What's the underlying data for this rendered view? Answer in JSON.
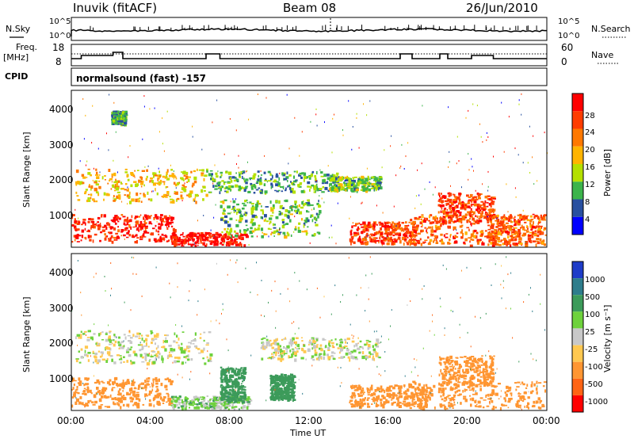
{
  "header": {
    "station": "Inuvik (fitACF)",
    "beam": "Beam 08",
    "date": "26/Jun/2010"
  },
  "panel_labels": {
    "nsky": "N.Sky",
    "nsearch": "N.Search",
    "freq": "Freq.",
    "freq_unit": "[MHz]",
    "nave": "Nave",
    "cpid": "CPID",
    "cpid_value": "normalsound (fast) -157"
  },
  "axis": {
    "xlabel": "Time UT",
    "xticks": [
      "00:00",
      "04:00",
      "08:00",
      "12:00",
      "16:00",
      "20:00",
      "00:00"
    ],
    "ylabel_power": "Slant Range [km]",
    "ylabel_velocity": "Slant Range [km]",
    "yticks": [
      "1000",
      "2000",
      "3000",
      "4000"
    ],
    "noise_left_ticks": [
      "10^5",
      "10^0"
    ],
    "noise_right_ticks": [
      "10^5",
      "10^0"
    ],
    "freq_ticks": [
      "18",
      "8"
    ],
    "nave_ticks": [
      "60",
      "0"
    ]
  },
  "colorbars": {
    "power": {
      "label": "Power [dB]",
      "ticks": [
        "28",
        "24",
        "20",
        "16",
        "12",
        "8",
        "4"
      ],
      "colors": [
        "#ff0000",
        "#ff3c00",
        "#ff7800",
        "#ffb400",
        "#b4e000",
        "#3cb44b",
        "#2850a0",
        "#0000ff"
      ]
    },
    "velocity": {
      "label": "Velocity [m s⁻¹]",
      "ticks": [
        "1000",
        "500",
        "100",
        "25",
        "-25",
        "-100",
        "-500",
        "-1000"
      ],
      "colors": [
        "#1e3cc8",
        "#2e7d8c",
        "#3c9b5a",
        "#6ed23c",
        "#c8c8c8",
        "#ffc850",
        "#ff9632",
        "#ff6414",
        "#ff0000"
      ]
    }
  },
  "chart_data": [
    {
      "type": "heatmap",
      "title": "Power",
      "xlabel": "Time UT",
      "ylabel": "Slant Range [km]",
      "x_range": [
        "00:00",
        "24:00"
      ],
      "ylim": [
        180,
        4500
      ],
      "colorbar_label": "Power [dB]",
      "colorbar_range": [
        0,
        32
      ],
      "regions": [
        {
          "t": [
            0.0,
            5.2
          ],
          "range": [
            350,
            1100
          ],
          "value": 28
        },
        {
          "t": [
            0.2,
            6.8
          ],
          "range": [
            1450,
            2350
          ],
          "value": 18
        },
        {
          "t": [
            2.0,
            2.7
          ],
          "range": [
            3600,
            3950
          ],
          "value": 10
        },
        {
          "t": [
            5.0,
            8.8
          ],
          "range": [
            180,
            600
          ],
          "value": 30
        },
        {
          "t": [
            6.8,
            13.5
          ],
          "range": [
            1700,
            2300
          ],
          "value": 10
        },
        {
          "t": [
            7.5,
            12.5
          ],
          "range": [
            500,
            1500
          ],
          "value": 12
        },
        {
          "t": [
            13.0,
            15.6
          ],
          "range": [
            1750,
            2150
          ],
          "value": 12
        },
        {
          "t": [
            14.0,
            17.5
          ],
          "range": [
            300,
            900
          ],
          "value": 26
        },
        {
          "t": [
            17.0,
            22.4
          ],
          "range": [
            250,
            1100
          ],
          "value": 24
        },
        {
          "t": [
            18.5,
            21.3
          ],
          "range": [
            900,
            1700
          ],
          "value": 26
        },
        {
          "t": [
            21.0,
            24.0
          ],
          "range": [
            250,
            1100
          ],
          "value": 24
        }
      ]
    },
    {
      "type": "heatmap",
      "title": "Velocity",
      "xlabel": "Time UT",
      "ylabel": "Slant Range [km]",
      "x_range": [
        "00:00",
        "24:00"
      ],
      "ylim": [
        180,
        4500
      ],
      "colorbar_label": "Velocity [m s-1]",
      "colorbar_range": [
        -1000,
        1000
      ],
      "regions": [
        {
          "t": [
            0.0,
            5.0
          ],
          "range": [
            300,
            1100
          ],
          "value": -200
        },
        {
          "t": [
            0.2,
            7.0
          ],
          "range": [
            1500,
            2400
          ],
          "value": 0
        },
        {
          "t": [
            5.0,
            9.0
          ],
          "range": [
            180,
            600
          ],
          "value": 50
        },
        {
          "t": [
            7.5,
            8.7
          ],
          "range": [
            450,
            1400
          ],
          "value": 200
        },
        {
          "t": [
            10.0,
            11.2
          ],
          "range": [
            500,
            1200
          ],
          "value": 200
        },
        {
          "t": [
            9.5,
            15.5
          ],
          "range": [
            1600,
            2200
          ],
          "value": 0
        },
        {
          "t": [
            14.0,
            18.0
          ],
          "range": [
            300,
            900
          ],
          "value": -300
        },
        {
          "t": [
            18.5,
            21.3
          ],
          "range": [
            900,
            1700
          ],
          "value": -400
        },
        {
          "t": [
            17.0,
            24.0
          ],
          "range": [
            250,
            1000
          ],
          "value": -300
        }
      ]
    }
  ]
}
